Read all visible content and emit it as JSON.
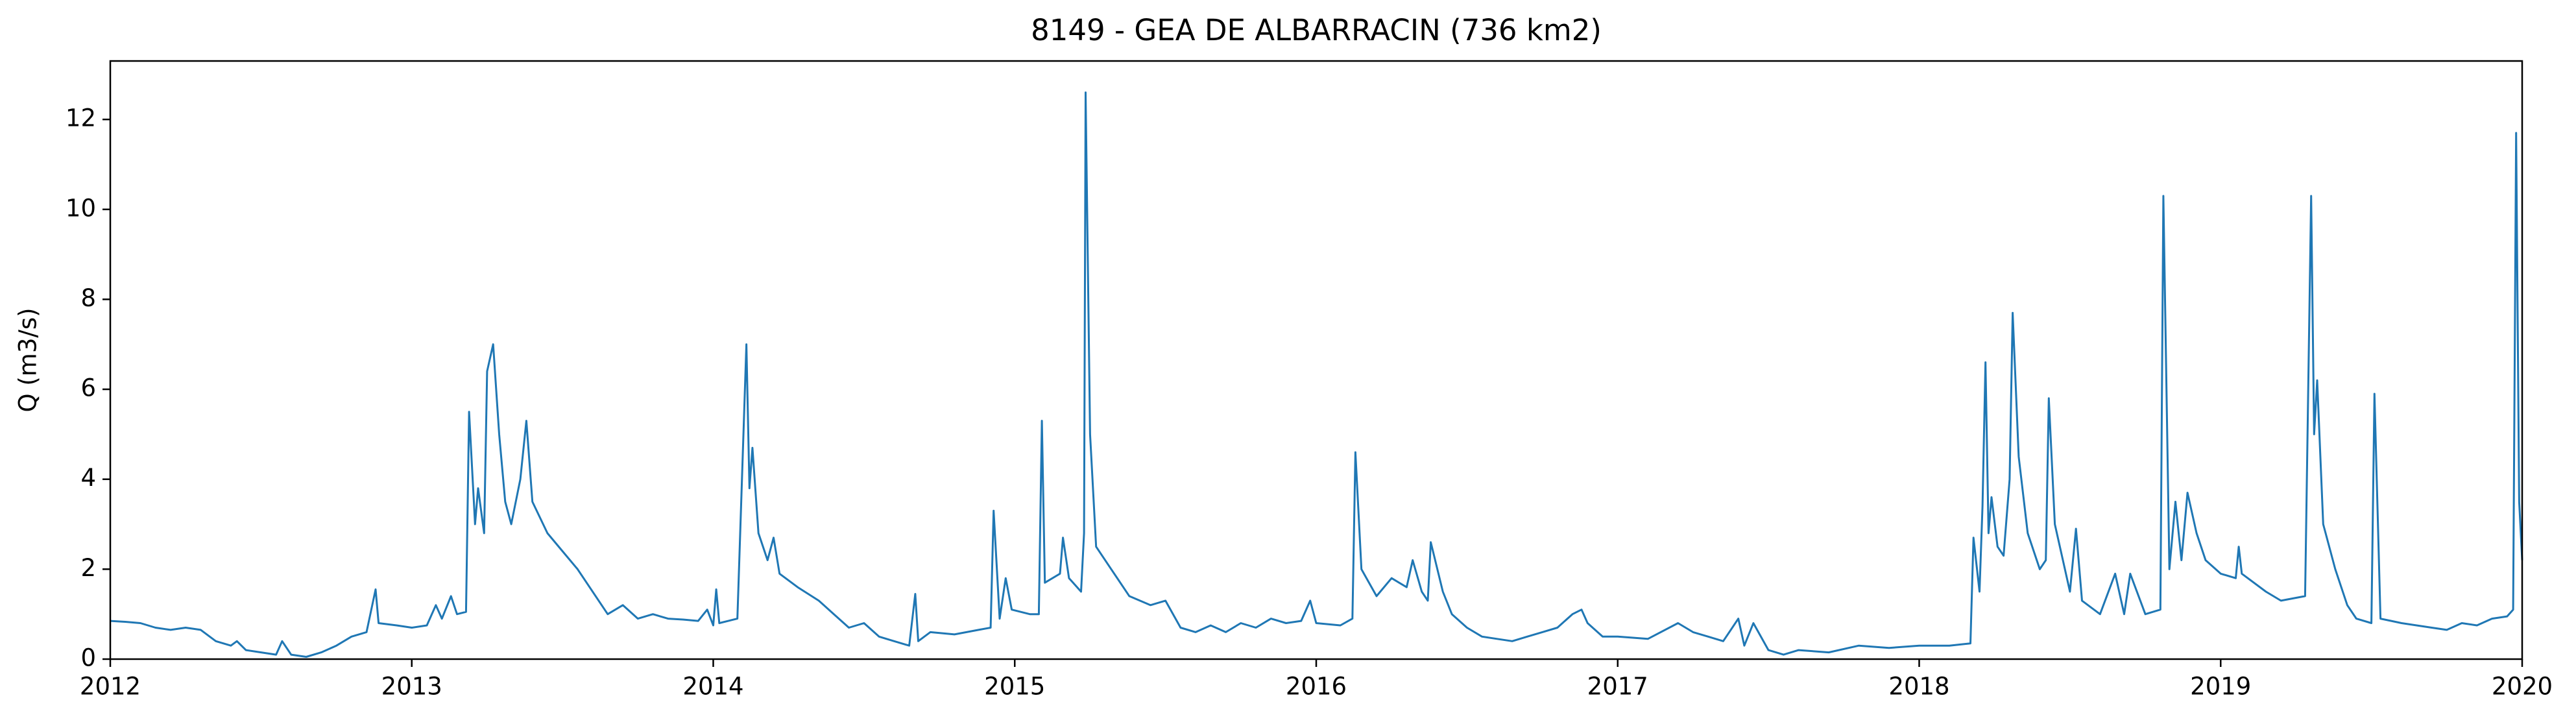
{
  "chart_data": {
    "type": "line",
    "title": "8149 - GEA DE ALBARRACIN (736 km2)",
    "ylabel": "Q (m3/s)",
    "x": [
      2012.0,
      2012.05,
      2012.1,
      2012.15,
      2012.2,
      2012.25,
      2012.3,
      2012.35,
      2012.4,
      2012.42,
      2012.45,
      2012.5,
      2012.55,
      2012.57,
      2012.6,
      2012.65,
      2012.7,
      2012.75,
      2012.8,
      2012.85,
      2012.88,
      2012.89,
      2012.95,
      2013.0,
      2013.05,
      2013.08,
      2013.1,
      2013.13,
      2013.15,
      2013.18,
      2013.19,
      2013.21,
      2013.22,
      2013.24,
      2013.25,
      2013.27,
      2013.29,
      2013.31,
      2013.33,
      2013.36,
      2013.38,
      2013.4,
      2013.45,
      2013.5,
      2013.55,
      2013.58,
      2013.62,
      2013.65,
      2013.7,
      2013.75,
      2013.8,
      2013.85,
      2013.9,
      2013.95,
      2013.98,
      2014.0,
      2014.01,
      2014.02,
      2014.05,
      2014.08,
      2014.11,
      2014.12,
      2014.13,
      2014.15,
      2014.18,
      2014.2,
      2014.22,
      2014.28,
      2014.35,
      2014.4,
      2014.45,
      2014.5,
      2014.55,
      2014.6,
      2014.65,
      2014.67,
      2014.68,
      2014.72,
      2014.8,
      2014.88,
      2014.92,
      2014.93,
      2014.95,
      2014.97,
      2014.99,
      2015.05,
      2015.08,
      2015.09,
      2015.1,
      2015.15,
      2015.16,
      2015.18,
      2015.22,
      2015.23,
      2015.235,
      2015.25,
      2015.27,
      2015.32,
      2015.38,
      2015.45,
      2015.5,
      2015.55,
      2015.6,
      2015.65,
      2015.7,
      2015.75,
      2015.8,
      2015.85,
      2015.9,
      2015.95,
      2015.98,
      2016.0,
      2016.08,
      2016.12,
      2016.13,
      2016.15,
      2016.2,
      2016.25,
      2016.3,
      2016.32,
      2016.35,
      2016.37,
      2016.38,
      2016.42,
      2016.45,
      2016.5,
      2016.55,
      2016.6,
      2016.65,
      2016.7,
      2016.75,
      2016.8,
      2016.85,
      2016.88,
      2016.9,
      2016.95,
      2017.0,
      2017.1,
      2017.2,
      2017.25,
      2017.3,
      2017.35,
      2017.4,
      2017.42,
      2017.45,
      2017.5,
      2017.55,
      2017.6,
      2017.7,
      2017.8,
      2017.9,
      2018.0,
      2018.1,
      2018.17,
      2018.18,
      2018.2,
      2018.21,
      2018.22,
      2018.23,
      2018.24,
      2018.26,
      2018.28,
      2018.3,
      2018.31,
      2018.33,
      2018.36,
      2018.4,
      2018.42,
      2018.43,
      2018.45,
      2018.5,
      2018.52,
      2018.54,
      2018.6,
      2018.65,
      2018.68,
      2018.7,
      2018.75,
      2018.8,
      2018.81,
      2018.83,
      2018.85,
      2018.87,
      2018.89,
      2018.92,
      2018.95,
      2019.0,
      2019.05,
      2019.06,
      2019.07,
      2019.15,
      2019.2,
      2019.28,
      2019.3,
      2019.31,
      2019.32,
      2019.34,
      2019.38,
      2019.42,
      2019.45,
      2019.5,
      2019.51,
      2019.53,
      2019.6,
      2019.7,
      2019.75,
      2019.8,
      2019.85,
      2019.9,
      2019.95,
      2019.97,
      2019.98,
      2019.99,
      2020.0
    ],
    "series": [
      {
        "color": "#1f77b4",
        "values": [
          0.85,
          0.83,
          0.8,
          0.7,
          0.65,
          0.7,
          0.65,
          0.4,
          0.3,
          0.4,
          0.2,
          0.15,
          0.1,
          0.4,
          0.1,
          0.05,
          0.15,
          0.3,
          0.5,
          0.6,
          1.55,
          0.8,
          0.75,
          0.7,
          0.75,
          1.2,
          0.9,
          1.4,
          1.0,
          1.05,
          5.5,
          3.0,
          3.8,
          2.8,
          6.4,
          7.0,
          5.0,
          3.5,
          3.0,
          4.0,
          5.3,
          3.5,
          2.8,
          2.4,
          2.0,
          1.7,
          1.3,
          1.0,
          1.2,
          0.9,
          1.0,
          0.9,
          0.88,
          0.85,
          1.1,
          0.75,
          1.55,
          0.8,
          0.85,
          0.9,
          7.0,
          3.8,
          4.7,
          2.8,
          2.2,
          2.7,
          1.9,
          1.6,
          1.3,
          1.0,
          0.7,
          0.8,
          0.5,
          0.4,
          0.3,
          1.45,
          0.4,
          0.6,
          0.55,
          0.65,
          0.7,
          3.3,
          0.9,
          1.8,
          1.1,
          1.0,
          1.0,
          5.3,
          1.7,
          1.9,
          2.7,
          1.8,
          1.5,
          2.8,
          12.6,
          5.0,
          2.5,
          2.0,
          1.4,
          1.2,
          1.3,
          0.7,
          0.6,
          0.75,
          0.6,
          0.8,
          0.7,
          0.9,
          0.8,
          0.85,
          1.3,
          0.8,
          0.75,
          0.9,
          4.6,
          2.0,
          1.4,
          1.8,
          1.6,
          2.2,
          1.5,
          1.3,
          2.6,
          1.5,
          1.0,
          0.7,
          0.5,
          0.45,
          0.4,
          0.5,
          0.6,
          0.7,
          1.0,
          1.1,
          0.8,
          0.5,
          0.5,
          0.45,
          0.8,
          0.6,
          0.5,
          0.4,
          0.9,
          0.3,
          0.8,
          0.2,
          0.1,
          0.2,
          0.15,
          0.3,
          0.25,
          0.3,
          0.3,
          0.35,
          2.7,
          1.5,
          3.4,
          6.6,
          2.8,
          3.6,
          2.5,
          2.3,
          4.0,
          7.7,
          4.5,
          2.8,
          2.0,
          2.2,
          5.8,
          3.0,
          1.5,
          2.9,
          1.3,
          1.0,
          1.9,
          1.0,
          1.9,
          1.0,
          1.1,
          10.3,
          2.0,
          3.5,
          2.2,
          3.7,
          2.8,
          2.2,
          1.9,
          1.8,
          2.5,
          1.9,
          1.5,
          1.3,
          1.4,
          10.3,
          5.0,
          6.2,
          3.0,
          2.0,
          1.2,
          0.9,
          0.8,
          5.9,
          0.9,
          0.8,
          0.7,
          0.65,
          0.8,
          0.75,
          0.9,
          0.95,
          1.1,
          11.7,
          3.5,
          2.2
        ]
      }
    ],
    "xlim": [
      2012,
      2020
    ],
    "xticks": [
      2012,
      2013,
      2014,
      2015,
      2016,
      2017,
      2018,
      2019,
      2020
    ],
    "ylim": [
      0,
      13.3
    ],
    "yticks": [
      0,
      2,
      4,
      6,
      8,
      10,
      12
    ],
    "grid": false
  }
}
